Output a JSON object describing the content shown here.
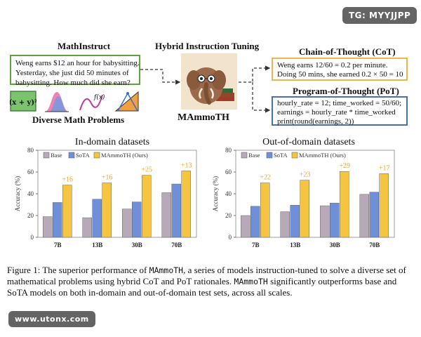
{
  "watermark_top": "TG: MYYJJPP",
  "watermark_bottom": "www.utonx.com",
  "diagram": {
    "mathinstruct_title": "MathInstruct",
    "hybrid_title": "Hybrid Instruction Tuning",
    "question_lines": [
      "Weng earns $12 an hour for babysitting.",
      "Yesterday, she just did 50 minutes of",
      "babysitting. How much did she earn?"
    ],
    "diverse_title": "Diverse Math Problems",
    "icon_text": {
      "matrix": "(x + y)²",
      "fx": "f(x)"
    },
    "mammoth_label": "MAmmoTH",
    "cot_title": "Chain-of-Thought (CoT)",
    "cot_lines": [
      "Weng earns 12/60 = 0.2 per minute.",
      "Doing 50 mins, she earned 0.2 × 50 = 10"
    ],
    "pot_title": "Program-of-Thought (PoT)",
    "pot_lines": [
      "hourly_rate = 12; time_worked = 50/60;",
      "earnings = hourly_rate * time_worked",
      "print(round(earnings, 2))"
    ]
  },
  "colors": {
    "base": "#b7a9b8",
    "sota": "#6f8fd9",
    "ours": "#f5c542",
    "delta": "#e8a730",
    "green_box": "#5fa33a",
    "gold_box": "#e8b84a",
    "blue_box": "#4a6fb5"
  },
  "chart_data": [
    {
      "type": "bar",
      "title": "In-domain datasets",
      "ylabel": "Accuracy (%)",
      "ylim": [
        0,
        80
      ],
      "yticks": [
        "0",
        "20",
        "40",
        "60",
        "80"
      ],
      "categories": [
        "7B",
        "13B",
        "30B",
        "70B"
      ],
      "series": [
        {
          "name": "Base",
          "values": [
            19,
            18,
            26,
            41
          ]
        },
        {
          "name": "SoTA",
          "values": [
            32,
            35,
            32.5,
            49
          ]
        },
        {
          "name": "MAmmoTH (Ours)",
          "values": [
            48,
            50,
            57,
            61
          ]
        }
      ],
      "annotations": [
        "+16",
        "+16",
        "+25",
        "+13"
      ],
      "legend": "top"
    },
    {
      "type": "bar",
      "title": "Out-of-domain datasets",
      "ylabel": "Accuracy (%)",
      "ylim": [
        0,
        80
      ],
      "yticks": [
        "0",
        "20",
        "40",
        "60",
        "80"
      ],
      "categories": [
        "7B",
        "13B",
        "30B",
        "70B"
      ],
      "series": [
        {
          "name": "Base",
          "values": [
            20,
            23.5,
            29,
            39.5
          ]
        },
        {
          "name": "SoTA",
          "values": [
            28.5,
            29.5,
            31.5,
            41.5
          ]
        },
        {
          "name": "MAmmoTH (Ours)",
          "values": [
            50,
            52.5,
            60.5,
            58.5
          ]
        }
      ],
      "annotations": [
        "+22",
        "+23",
        "+29",
        "+17"
      ],
      "legend": "top"
    }
  ],
  "caption": {
    "part1": "Figure 1: The superior performance of ",
    "model1": "MAmmoTH",
    "part2": ", a series of models instruction-tuned to solve a diverse set of mathematical problems using hybrid CoT and PoT rationales. ",
    "model2": "MAmmoTH",
    "part3": " significantly outperforms base and SoTA models on both in-domain and out-of-domain test sets, across all scales."
  }
}
